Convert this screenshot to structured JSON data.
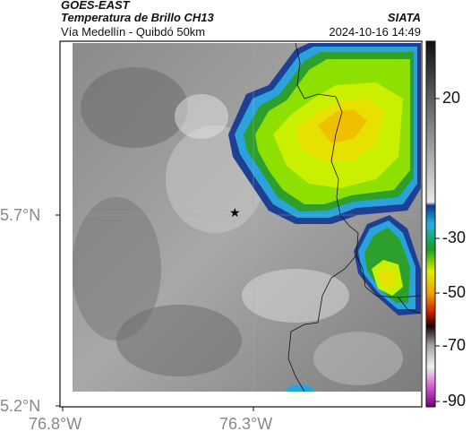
{
  "header": {
    "satellite": "GOES-EAST",
    "product": "Temperatura de Brillo CH13",
    "route": "Vía Medellín - Quibdó 50km",
    "source": "SIATA",
    "datetime": "2024-10-16 14:49"
  },
  "axes": {
    "y_ticks": [
      "5.7°N",
      "5.2°N"
    ],
    "x_ticks": [
      "76.8°W",
      "76.3°W"
    ]
  },
  "colorbar": {
    "labels": [
      "20",
      "-30",
      "-50",
      "-70",
      "-90"
    ]
  },
  "marker": {
    "symbol": "★"
  }
}
